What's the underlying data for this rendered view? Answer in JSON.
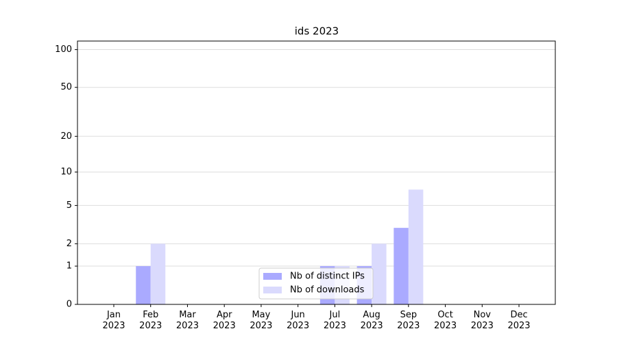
{
  "chart_data": {
    "type": "bar",
    "title": "ids 2023",
    "categories": [
      "Jan\n2023",
      "Feb\n2023",
      "Mar\n2023",
      "Apr\n2023",
      "May\n2023",
      "Jun\n2023",
      "Jul\n2023",
      "Aug\n2023",
      "Sep\n2023",
      "Oct\n2023",
      "Nov\n2023",
      "Dec\n2023"
    ],
    "series": [
      {
        "name": "Nb of distinct IPs",
        "color": "#aaaaff",
        "values": [
          0,
          1,
          0,
          0,
          0,
          0,
          1,
          1,
          3,
          0,
          0,
          0
        ]
      },
      {
        "name": "Nb of downloads",
        "color": "#dadafd",
        "values": [
          0,
          2,
          0,
          0,
          0,
          0,
          1,
          2,
          7,
          0,
          0,
          0
        ]
      }
    ],
    "yscale": "log1p",
    "ylim": [
      0,
      117
    ],
    "yticks": [
      0,
      1,
      2,
      5,
      10,
      20,
      50,
      100
    ],
    "grid": true,
    "legend": "lower center"
  }
}
